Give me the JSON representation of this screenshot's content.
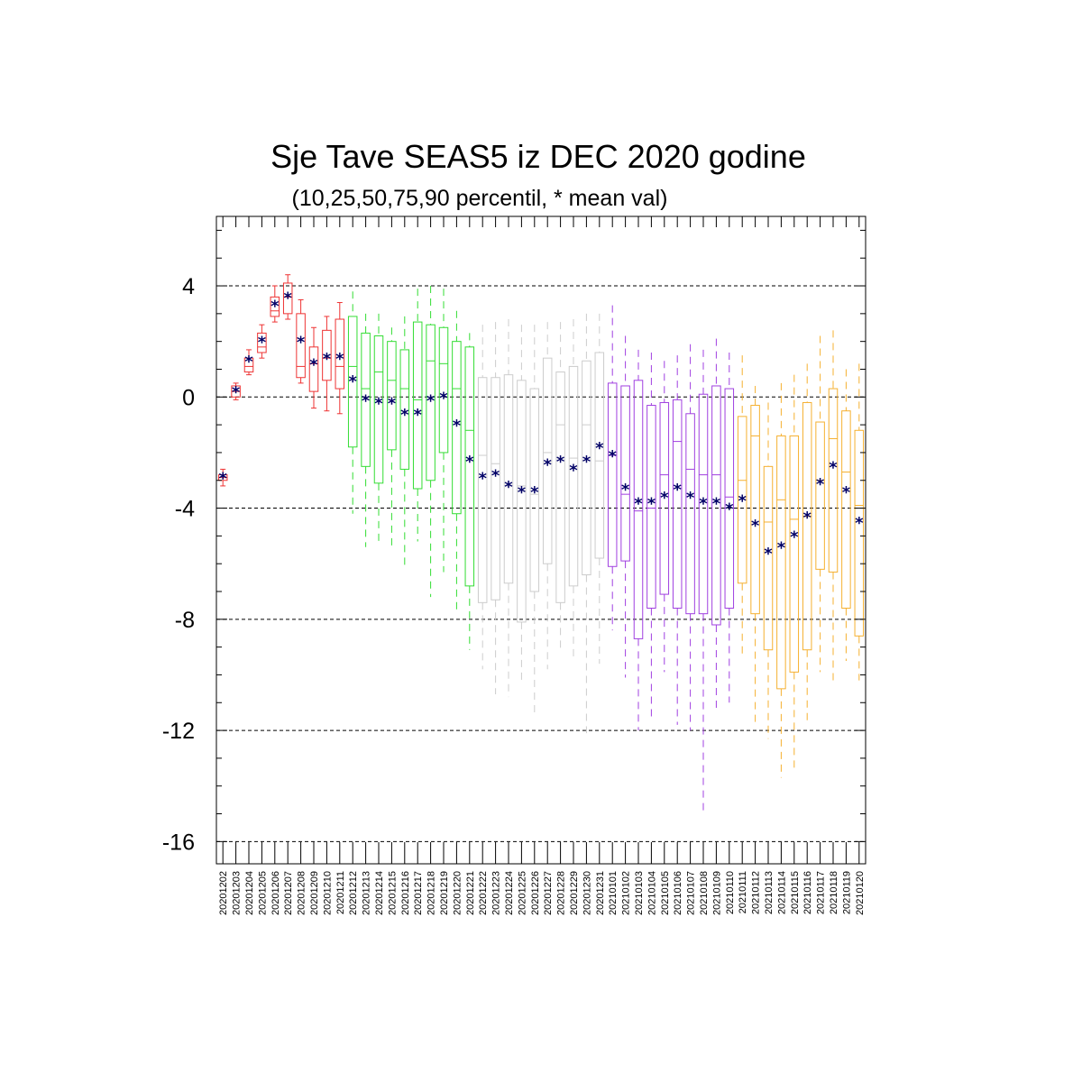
{
  "chart_data": {
    "type": "box",
    "title": "Sje Tave SEAS5 iz DEC 2020 godine",
    "subtitle": "(10,25,50,75,90 percentil, * mean val)",
    "xlabel": "",
    "ylabel": "",
    "ylim": [
      -16.8,
      6.5
    ],
    "yticks": [
      4,
      0,
      -4,
      -8,
      -12,
      -16
    ],
    "ytick_labels": [
      "4",
      "0",
      "-4",
      "-8",
      "-12",
      "-16"
    ],
    "grid": "horizontal dashed at major ticks",
    "colors": {
      "red": "#ee3333",
      "green": "#33dd33",
      "gray": "#cccccc",
      "purple": "#a040e0",
      "orange": "#f5b030",
      "mean_marker": "#000066"
    },
    "categories": [
      "20201202",
      "20201203",
      "20201204",
      "20201205",
      "20201206",
      "20201207",
      "20201208",
      "20201209",
      "20201210",
      "20201211",
      "20201212",
      "20201213",
      "20201214",
      "20201215",
      "20201216",
      "20201217",
      "20201218",
      "20201219",
      "20201220",
      "20201221",
      "20201222",
      "20201223",
      "20201224",
      "20201225",
      "20201226",
      "20201227",
      "20201228",
      "20201229",
      "20201230",
      "20201231",
      "20210101",
      "20210102",
      "20210103",
      "20210104",
      "20210105",
      "20210106",
      "20210107",
      "20210108",
      "20210109",
      "20210110",
      "20210111",
      "20210112",
      "20210113",
      "20210114",
      "20210115",
      "20210116",
      "20210117",
      "20210118",
      "20210119",
      "20210120"
    ],
    "groups": [
      "red",
      "red",
      "red",
      "red",
      "red",
      "red",
      "red",
      "red",
      "red",
      "red",
      "green",
      "green",
      "green",
      "green",
      "green",
      "green",
      "green",
      "green",
      "green",
      "green",
      "gray",
      "gray",
      "gray",
      "gray",
      "gray",
      "gray",
      "gray",
      "gray",
      "gray",
      "gray",
      "purple",
      "purple",
      "purple",
      "purple",
      "purple",
      "purple",
      "purple",
      "purple",
      "purple",
      "purple",
      "orange",
      "orange",
      "orange",
      "orange",
      "orange",
      "orange",
      "orange",
      "orange",
      "orange",
      "orange"
    ],
    "p10": [
      -3.2,
      -0.1,
      0.8,
      1.4,
      2.7,
      2.8,
      0.5,
      -0.4,
      -0.5,
      -0.6,
      -4.2,
      -5.4,
      -5.3,
      -5.5,
      -6.1,
      -5.2,
      -7.2,
      -6.3,
      -7.7,
      -9.1,
      -9.8,
      -10.7,
      -10.8,
      -10.3,
      -11.4,
      -9.8,
      -9.1,
      -9.5,
      -12.1,
      -9.6,
      -8.4,
      -10.1,
      -12.0,
      -11.5,
      -9.9,
      -11.8,
      -12.0,
      -14.9,
      -11.3,
      -11.0,
      -9.4,
      -11.7,
      -12.3,
      -13.7,
      -13.5,
      -11.7,
      -9.9,
      -10.2,
      -9.5,
      -10.2
    ],
    "p25": [
      -3.0,
      0.0,
      0.9,
      1.6,
      2.9,
      3.0,
      0.7,
      0.2,
      0.6,
      0.3,
      -1.8,
      -2.5,
      -3.1,
      -1.9,
      -2.6,
      -3.3,
      -3.0,
      -2.0,
      -4.2,
      -6.8,
      -7.4,
      -7.3,
      -6.7,
      -8.1,
      -7.0,
      -6.0,
      -7.4,
      -6.8,
      -6.4,
      -5.8,
      -6.1,
      -5.9,
      -8.7,
      -7.6,
      -7.1,
      -7.6,
      -7.8,
      -7.8,
      -8.2,
      -7.6,
      -6.7,
      -7.8,
      -9.1,
      -10.5,
      -9.9,
      -9.1,
      -6.2,
      -6.3,
      -7.6,
      -8.6
    ],
    "median": [
      -2.9,
      0.2,
      1.1,
      1.8,
      3.1,
      3.6,
      1.1,
      1.2,
      1.4,
      1.1,
      1.1,
      0.3,
      0.9,
      0.6,
      0.3,
      -0.1,
      1.3,
      1.2,
      0.3,
      -1.2,
      -2.1,
      -2.4,
      -3.2,
      -3.2,
      -3.5,
      -2.0,
      -1.0,
      -2.2,
      -1.0,
      -2.3,
      -2.1,
      -3.5,
      -4.1,
      -4.0,
      -2.8,
      -1.6,
      -2.6,
      -2.8,
      -2.8,
      -3.6,
      -3.0,
      -1.4,
      -4.5,
      -3.7,
      -4.4,
      -4.3,
      -3.0,
      -1.5,
      -2.7,
      -3.9
    ],
    "p75": [
      -2.8,
      0.4,
      1.4,
      2.3,
      3.6,
      4.1,
      3.0,
      1.8,
      2.4,
      2.8,
      2.9,
      2.3,
      2.2,
      2.0,
      1.7,
      2.7,
      2.6,
      2.5,
      2.0,
      1.8,
      0.7,
      0.7,
      0.8,
      0.6,
      0.3,
      1.4,
      0.9,
      1.1,
      1.3,
      1.6,
      0.5,
      0.4,
      0.6,
      -0.3,
      -0.2,
      -0.1,
      -0.6,
      0.1,
      0.4,
      0.3,
      -0.7,
      -0.3,
      -2.5,
      -1.4,
      -1.4,
      -0.2,
      -0.9,
      0.3,
      -0.5,
      -1.2
    ],
    "p90": [
      -2.6,
      0.5,
      1.7,
      2.6,
      4.0,
      4.4,
      3.5,
      2.5,
      2.9,
      3.4,
      3.8,
      3.0,
      3.0,
      2.5,
      2.9,
      3.9,
      4.0,
      3.9,
      3.1,
      2.3,
      2.6,
      2.7,
      2.8,
      2.6,
      2.6,
      2.7,
      2.7,
      2.8,
      3.0,
      3.0,
      3.3,
      2.2,
      1.7,
      1.6,
      1.3,
      1.5,
      1.9,
      1.7,
      2.1,
      1.6,
      1.5,
      0.4,
      -0.2,
      0.5,
      0.8,
      1.2,
      2.2,
      2.4,
      1.0,
      1.2
    ],
    "mean": [
      -2.9,
      0.2,
      1.3,
      2.0,
      3.3,
      3.6,
      2.0,
      1.2,
      1.4,
      1.4,
      0.6,
      -0.1,
      -0.2,
      -0.2,
      -0.6,
      -0.6,
      -0.1,
      0.0,
      -1.0,
      -2.3,
      -2.9,
      -2.8,
      -3.2,
      -3.4,
      -3.4,
      -2.4,
      -2.3,
      -2.6,
      -2.3,
      -1.8,
      -2.1,
      -3.3,
      -3.8,
      -3.8,
      -3.6,
      -3.3,
      -3.6,
      -3.8,
      -3.8,
      -4.0,
      -3.7,
      -4.6,
      -5.6,
      -5.4,
      -5.0,
      -4.3,
      -3.1,
      -2.5,
      -3.4,
      -4.5
    ]
  }
}
